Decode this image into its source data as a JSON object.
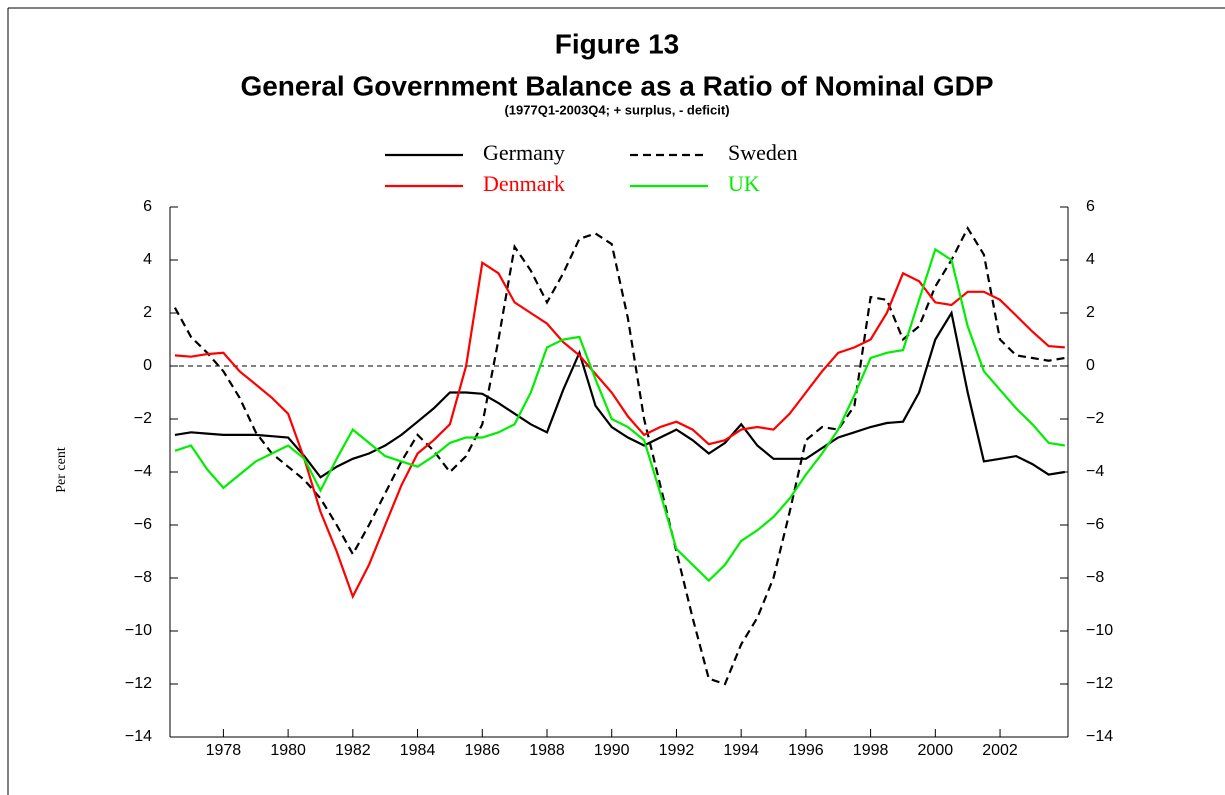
{
  "chart_data": {
    "type": "line",
    "title": "Figure 13",
    "subtitle": "General Government Balance as a Ratio of Nominal GDP",
    "note": "(1977Q1-2003Q4; + surplus, - deficit)",
    "y_label": "Per cent",
    "x": [
      1976.5,
      1977,
      1977.5,
      1978,
      1978.5,
      1979,
      1979.5,
      1980,
      1980.5,
      1981,
      1981.5,
      1982,
      1982.5,
      1983,
      1983.5,
      1984,
      1984.5,
      1985,
      1985.5,
      1986,
      1986.5,
      1987,
      1987.5,
      1988,
      1988.5,
      1989,
      1989.5,
      1990,
      1990.5,
      1991,
      1991.5,
      1992,
      1992.5,
      1993,
      1993.5,
      1994,
      1994.5,
      1995,
      1995.5,
      1996,
      1996.5,
      1997,
      1997.5,
      1998,
      1998.5,
      1999,
      1999.5,
      2000,
      2000.5,
      2001,
      2001.5,
      2002,
      2002.5,
      2003,
      2003.5,
      2004
    ],
    "xlim": [
      1976.35,
      2004.1
    ],
    "xticks": [
      1978,
      1980,
      1982,
      1984,
      1986,
      1988,
      1990,
      1992,
      1994,
      1996,
      1998,
      2000,
      2002
    ],
    "ylim": [
      -14,
      6
    ],
    "yticks": [
      {
        "value": -14,
        "label": "−14"
      },
      {
        "value": -12,
        "label": "−12"
      },
      {
        "value": -10,
        "label": "−10"
      },
      {
        "value": -8,
        "label": "−8"
      },
      {
        "value": -6,
        "label": "−6"
      },
      {
        "value": -4,
        "label": "−4"
      },
      {
        "value": -2,
        "label": "−2"
      },
      0,
      2,
      4,
      6
    ],
    "series": [
      {
        "name": "Germany",
        "color": "#000000",
        "dashed": false,
        "values": [
          -2.6,
          -2.5,
          -2.55,
          -2.6,
          -2.6,
          -2.6,
          -2.65,
          -2.7,
          -3.4,
          -4.2,
          -3.8,
          -3.5,
          -3.3,
          -3.0,
          -2.6,
          -2.1,
          -1.6,
          -1.0,
          -1.0,
          -1.05,
          -1.4,
          -1.8,
          -2.2,
          -2.5,
          -0.9,
          0.5,
          -1.5,
          -2.3,
          -2.7,
          -3.0,
          -2.7,
          -2.4,
          -2.8,
          -3.3,
          -2.9,
          -2.2,
          -3.0,
          -3.5,
          -3.5,
          -3.5,
          -3.1,
          -2.7,
          -2.5,
          -2.3,
          -2.15,
          -2.1,
          -1.0,
          1.0,
          2.0,
          -1.0,
          -3.6,
          -3.5,
          -3.4,
          -3.7,
          -4.1,
          -4.0
        ]
      },
      {
        "name": "Sweden",
        "color": "#000000",
        "dashed": true,
        "values": [
          2.2,
          1.1,
          0.5,
          -0.2,
          -1.2,
          -2.5,
          -3.3,
          -3.8,
          -4.3,
          -5.0,
          -6.0,
          -7.1,
          -6.0,
          -4.8,
          -3.6,
          -2.6,
          -3.2,
          -4.0,
          -3.4,
          -2.2,
          1.0,
          4.5,
          3.6,
          2.4,
          3.5,
          4.8,
          5.0,
          4.6,
          1.8,
          -2.0,
          -4.5,
          -7.0,
          -9.5,
          -11.8,
          -12.0,
          -10.5,
          -9.5,
          -8.0,
          -5.5,
          -2.8,
          -2.3,
          -2.4,
          -1.5,
          2.6,
          2.5,
          1.0,
          1.5,
          3.0,
          4.0,
          5.2,
          4.2,
          1.0,
          0.4,
          0.3,
          0.2,
          0.3
        ]
      },
      {
        "name": "Denmark",
        "color": "#ff0000",
        "dashed": false,
        "values": [
          0.4,
          0.35,
          0.45,
          0.5,
          -0.2,
          -0.7,
          -1.2,
          -1.8,
          -3.5,
          -5.5,
          -7.0,
          -8.7,
          -7.5,
          -6.0,
          -4.5,
          -3.3,
          -2.8,
          -2.2,
          0.0,
          3.9,
          3.5,
          2.4,
          2.0,
          1.6,
          0.9,
          0.4,
          -0.3,
          -1.0,
          -1.9,
          -2.6,
          -2.3,
          -2.1,
          -2.4,
          -2.95,
          -2.8,
          -2.4,
          -2.3,
          -2.4,
          -1.8,
          -1.0,
          -0.2,
          0.5,
          0.7,
          1.0,
          2.0,
          3.5,
          3.2,
          2.4,
          2.3,
          2.8,
          2.8,
          2.5,
          1.9,
          1.3,
          0.75,
          0.7
        ]
      },
      {
        "name": "UK",
        "color": "#00ee00",
        "dashed": false,
        "values": [
          -3.2,
          -3.0,
          -3.9,
          -4.6,
          -4.1,
          -3.6,
          -3.3,
          -3.0,
          -3.5,
          -4.7,
          -3.5,
          -2.4,
          -2.9,
          -3.4,
          -3.6,
          -3.8,
          -3.4,
          -2.9,
          -2.7,
          -2.7,
          -2.5,
          -2.2,
          -1.0,
          0.7,
          1.0,
          1.1,
          -0.5,
          -2.0,
          -2.3,
          -2.8,
          -4.8,
          -6.9,
          -7.5,
          -8.1,
          -7.5,
          -6.6,
          -6.2,
          -5.7,
          -5.0,
          -4.1,
          -3.3,
          -2.4,
          -1.1,
          0.3,
          0.5,
          0.6,
          2.5,
          4.4,
          4.0,
          1.5,
          -0.2,
          -0.9,
          -1.6,
          -2.2,
          -2.9,
          -3.0
        ]
      }
    ]
  }
}
